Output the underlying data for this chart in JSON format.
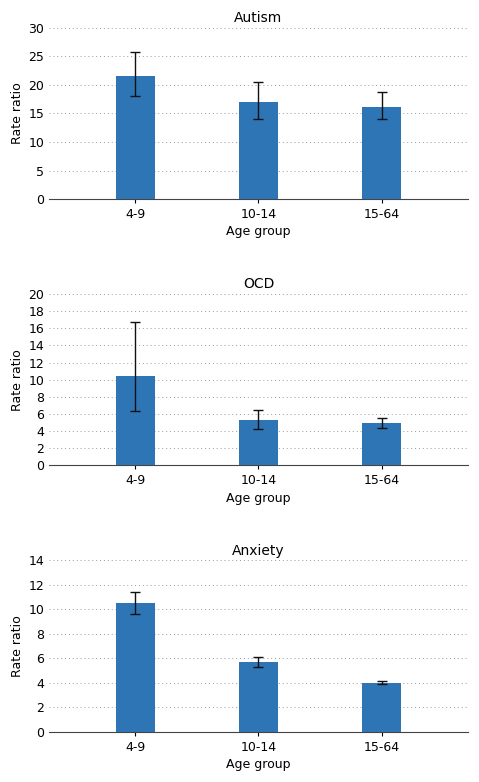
{
  "charts": [
    {
      "title": "Autism",
      "categories": [
        "4-9",
        "10-14",
        "15-64"
      ],
      "values": [
        21.5,
        17.0,
        16.2
      ],
      "errors_upper": [
        4.2,
        3.5,
        2.5
      ],
      "errors_lower": [
        3.5,
        3.0,
        2.2
      ],
      "ylim": [
        0,
        30
      ],
      "yticks": [
        0,
        5,
        10,
        15,
        20,
        25,
        30
      ]
    },
    {
      "title": "OCD",
      "categories": [
        "4-9",
        "10-14",
        "15-64"
      ],
      "values": [
        10.4,
        5.3,
        4.9
      ],
      "errors_upper": [
        6.3,
        1.2,
        0.6
      ],
      "errors_lower": [
        4.0,
        1.0,
        0.5
      ],
      "ylim": [
        0,
        20
      ],
      "yticks": [
        0,
        2,
        4,
        6,
        8,
        10,
        12,
        14,
        16,
        18,
        20
      ]
    },
    {
      "title": "Anxiety",
      "categories": [
        "4-9",
        "10-14",
        "15-64"
      ],
      "values": [
        10.5,
        5.7,
        4.0
      ],
      "errors_upper": [
        0.9,
        0.4,
        0.1
      ],
      "errors_lower": [
        0.9,
        0.4,
        0.1
      ],
      "ylim": [
        0,
        14
      ],
      "yticks": [
        0,
        2,
        4,
        6,
        8,
        10,
        12,
        14
      ]
    }
  ],
  "bar_color": "#2E75B6",
  "error_color": "#111111",
  "xlabel": "Age group",
  "ylabel": "Rate ratio",
  "background_color": "#ffffff",
  "grid_color": "#999999",
  "bar_width": 0.32,
  "figsize": [
    4.79,
    7.82
  ],
  "dpi": 100
}
